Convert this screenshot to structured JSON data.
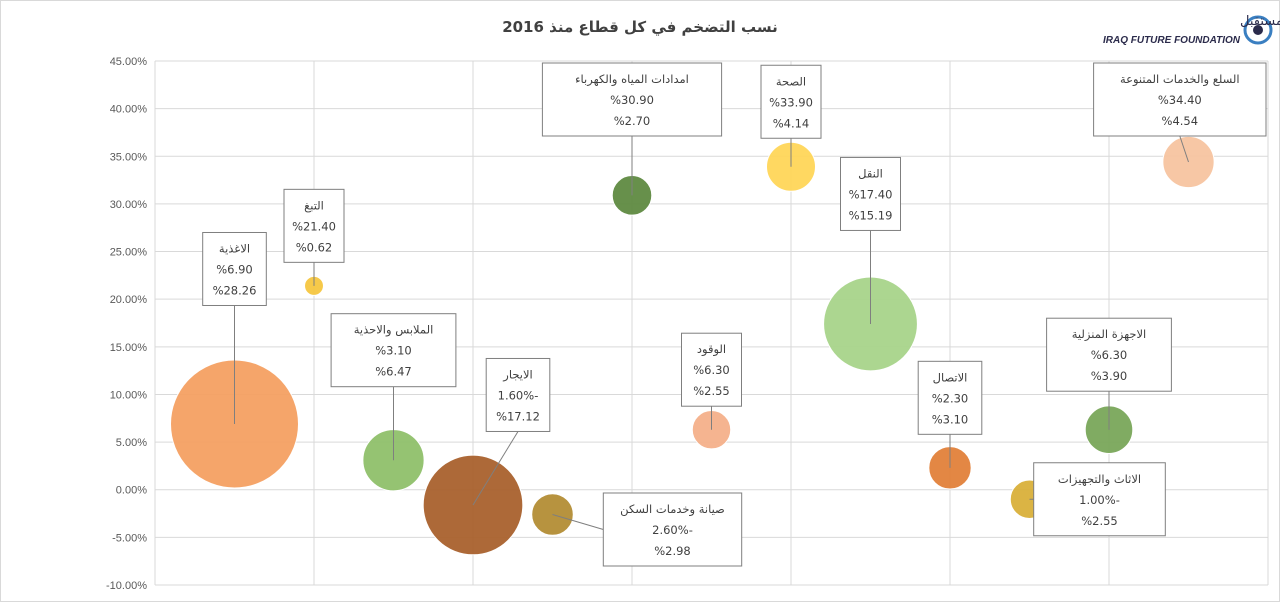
{
  "logo": {
    "name_ar": "مؤسسة عراق المستقبل",
    "name_en": "IRAQ FUTURE FOUNDATION",
    "color": "#2b2b4b",
    "accent": "#3a7fc1"
  },
  "chart_data": {
    "type": "bubble",
    "title": "نسب التضخم في كل قطاع منذ 2016",
    "xlabel": "",
    "ylabel": "",
    "ylim": [
      -0.1,
      0.45
    ],
    "y_ticks": [
      "45.00%",
      "40.00%",
      "35.00%",
      "30.00%",
      "25.00%",
      "20.00%",
      "15.00%",
      "10.00%",
      "5.00%",
      "0.00%",
      "-5.00%",
      "-10.00%"
    ],
    "grid": true,
    "series": [
      {
        "label": "الاغذية",
        "lines": [
          "الاغذية",
          "%6.90",
          "%28.26"
        ],
        "x": 0.5,
        "y": 0.069,
        "size": 28.26,
        "color": "#f4a062"
      },
      {
        "label": "التبغ",
        "lines": [
          "التبغ",
          "%21.40",
          "%0.62"
        ],
        "x": 1.0,
        "y": 0.214,
        "size": 0.62,
        "color": "#f6c640"
      },
      {
        "label": "الملابس والاحذية",
        "lines": [
          "الملابس والاحذية",
          "%3.10",
          "%6.47"
        ],
        "x": 1.5,
        "y": 0.031,
        "size": 6.47,
        "color": "#8fc06a"
      },
      {
        "label": "الايجار",
        "lines": [
          "الايجار",
          "-1.60%",
          "%17.12"
        ],
        "x": 2.0,
        "y": -0.016,
        "size": 17.12,
        "color": "#a9612d"
      },
      {
        "label": "صيانة وخدمات السكن",
        "lines": [
          "صيانة وخدمات السكن",
          "-2.60%",
          "%2.98"
        ],
        "x": 2.5,
        "y": -0.026,
        "size": 2.98,
        "color": "#b38d35"
      },
      {
        "label": "امدادات المياه والكهرباء",
        "lines": [
          "امدادات المياه والكهرباء",
          "%30.90",
          "%2.70"
        ],
        "x": 3.0,
        "y": 0.309,
        "size": 2.7,
        "color": "#5f8a41"
      },
      {
        "label": "الوقود",
        "lines": [
          "الوقود",
          "%6.30",
          "%2.55"
        ],
        "x": 3.5,
        "y": 0.063,
        "size": 2.55,
        "color": "#f4b08a"
      },
      {
        "label": "الصحة",
        "lines": [
          "الصحة",
          "%33.90",
          "%4.14"
        ],
        "x": 4.0,
        "y": 0.339,
        "size": 4.14,
        "color": "#ffd659"
      },
      {
        "label": "النقل",
        "lines": [
          "النقل",
          "%17.40",
          "%15.19"
        ],
        "x": 4.5,
        "y": 0.174,
        "size": 15.19,
        "color": "#a8d48a"
      },
      {
        "label": "الاتصال",
        "lines": [
          "الاتصال",
          "%2.30",
          "%3.10"
        ],
        "x": 5.0,
        "y": 0.023,
        "size": 3.1,
        "color": "#e2813a"
      },
      {
        "label": "الاثاث والتجهيزات",
        "lines": [
          "الاثاث والتجهيزات",
          "-1.00%",
          "%2.55"
        ],
        "x": 5.5,
        "y": -0.01,
        "size": 2.55,
        "color": "#d9b03a"
      },
      {
        "label": "الاجهزة المنزلية",
        "lines": [
          "الاجهزة المنزلية",
          "%6.30",
          "%3.90"
        ],
        "x": 6.0,
        "y": 0.063,
        "size": 3.9,
        "color": "#79a75a"
      },
      {
        "label": "السلع والخدمات المتنوعة",
        "lines": [
          "السلع والخدمات المتنوعة",
          "%34.40",
          "%4.54"
        ],
        "x": 6.5,
        "y": 0.344,
        "size": 4.54,
        "color": "#f7c4a0"
      }
    ]
  }
}
